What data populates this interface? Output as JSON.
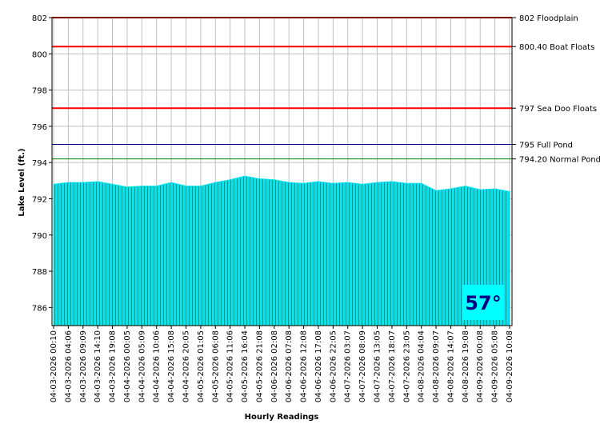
{
  "chart_data": {
    "type": "area",
    "y_label": "Lake Level (ft.)",
    "x_label": "Hourly Readings",
    "badge": "57°",
    "categories": [
      "04-03-2026 00:10",
      "04-03-2026 04:06",
      "04-03-2026 09:09",
      "04-03-2026 14:10",
      "04-03-2026 19:08",
      "04-04-2026 00:05",
      "04-04-2026 05:09",
      "04-04-2026 10:06",
      "04-04-2026 15:08",
      "04-04-2026 20:05",
      "04-05-2026 01:05",
      "04-05-2026 06:08",
      "04-05-2026 11:06",
      "04-05-2026 16:04",
      "04-05-2026 21:08",
      "04-06-2026 02:08",
      "04-06-2026 07:08",
      "04-06-2026 12:08",
      "04-06-2026 17:08",
      "04-06-2026 22:05",
      "04-07-2026 03:07",
      "04-07-2026 08:09",
      "04-07-2026 13:05",
      "04-07-2026 18:07",
      "04-07-2026 23:05",
      "04-08-2026 04:04",
      "04-08-2026 09:07",
      "04-08-2026 14:07",
      "04-08-2026 19:08",
      "04-09-2026 00:08",
      "04-09-2026 05:08",
      "04-09-2026 10:08"
    ],
    "values": [
      792.8,
      792.9,
      792.9,
      792.95,
      792.8,
      792.65,
      792.7,
      792.7,
      792.9,
      792.7,
      792.7,
      792.9,
      793.05,
      793.25,
      793.1,
      793.05,
      792.9,
      792.85,
      792.95,
      792.85,
      792.9,
      792.8,
      792.9,
      792.95,
      792.85,
      792.85,
      792.45,
      792.55,
      792.7,
      792.5,
      792.55,
      792.4
    ],
    "color": "#00e5ee",
    "ylim": [
      785,
      802
    ],
    "yticks": [
      786,
      788,
      790,
      792,
      794,
      796,
      798,
      800,
      802
    ],
    "grid": true,
    "reference_lines": [
      {
        "value": 802,
        "label": "802 Floodplain",
        "color": "#ff0000"
      },
      {
        "value": 800.4,
        "label": "800.40 Boat Floats",
        "color": "#ff0000"
      },
      {
        "value": 797,
        "label": "797 Sea Doo Floats",
        "color": "#ff0000"
      },
      {
        "value": 795,
        "label": "795 Full Pond",
        "color": "#000080"
      },
      {
        "value": 794.2,
        "label": "794.20 Normal Pond",
        "color": "#008000"
      }
    ]
  }
}
